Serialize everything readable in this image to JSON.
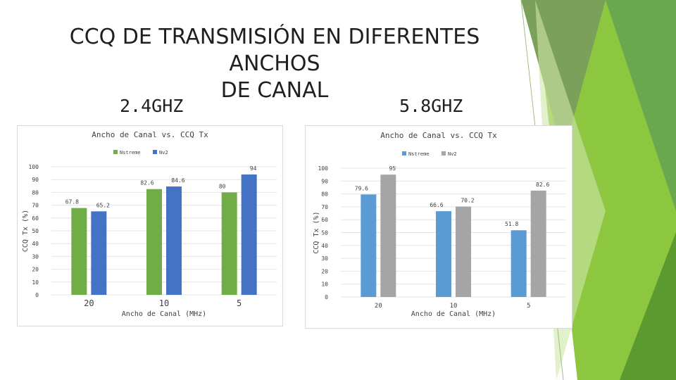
{
  "slide": {
    "title_line1": "CCQ DE TRANSMISIÓN EN DIFERENTES ANCHOS",
    "title_line2": "DE CANAL",
    "subtitle_left": "2.4GHZ",
    "subtitle_right": "5.8GHZ"
  },
  "colors": {
    "green_dark": "#4e8f2a",
    "green_mid": "#6aa84f",
    "green_light": "#8dc63f",
    "green_pale": "#cfe6a8"
  },
  "chart_data": [
    {
      "type": "bar",
      "title": "Ancho de Canal vs. CCQ Tx",
      "xlabel": "Ancho de Canal (MHz)",
      "ylabel": "CCQ Tx (%)",
      "categories": [
        "20",
        "10",
        "5"
      ],
      "series": [
        {
          "name": "Nstreme",
          "color": "#70ad47",
          "values": [
            67.8,
            82.6,
            80
          ]
        },
        {
          "name": "Nv2",
          "color": "#4472c4",
          "values": [
            65.2,
            84.6,
            94
          ]
        }
      ],
      "ylim": [
        0,
        100
      ],
      "yticks": [
        0,
        10,
        20,
        30,
        40,
        50,
        60,
        70,
        80,
        90,
        100
      ],
      "grid": true,
      "legend": "top-center"
    },
    {
      "type": "bar",
      "title": "Ancho de Canal vs. CCQ Tx",
      "xlabel": "Ancho de Canal (MHz)",
      "ylabel": "CCQ Tx (%)",
      "categories": [
        "20",
        "10",
        "5"
      ],
      "series": [
        {
          "name": "Nstreme",
          "color": "#5b9bd5",
          "values": [
            79.6,
            66.6,
            51.8
          ]
        },
        {
          "name": "Nv2",
          "color": "#a5a5a5",
          "values": [
            95,
            70.2,
            82.6
          ]
        }
      ],
      "ylim": [
        0,
        100
      ],
      "yticks": [
        0,
        10,
        20,
        30,
        40,
        50,
        60,
        70,
        80,
        90,
        100
      ],
      "grid": true,
      "legend": "top-center"
    }
  ]
}
